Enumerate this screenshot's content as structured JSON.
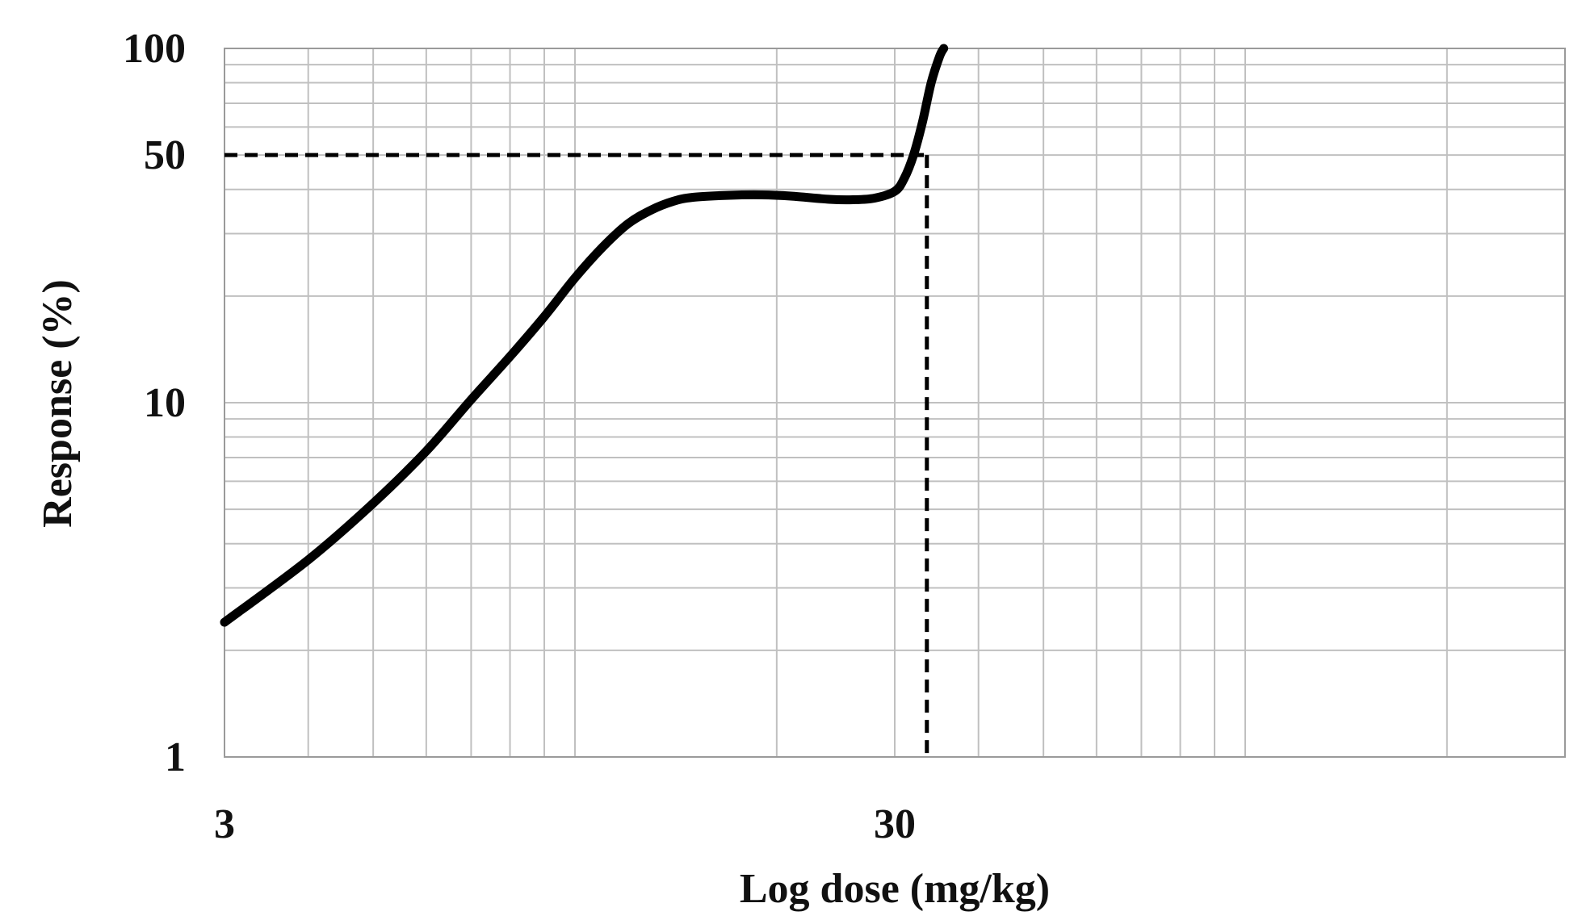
{
  "chart_data": {
    "type": "line",
    "title": "",
    "xlabel": "Log dose (mg/kg)",
    "ylabel": "Response (%)",
    "x_scale": "log",
    "y_scale": "log",
    "xlim": [
      3,
      300
    ],
    "ylim": [
      1,
      100
    ],
    "x_tick_labels": [
      {
        "value": 3,
        "label": "3"
      },
      {
        "value": 30,
        "label": "30"
      }
    ],
    "y_tick_labels": [
      {
        "value": 1,
        "label": "1"
      },
      {
        "value": 10,
        "label": "10"
      },
      {
        "value": 50,
        "label": "50"
      },
      {
        "value": 100,
        "label": "100"
      }
    ],
    "grid": true,
    "grid_color": "#c0c0c0",
    "line_color": "#000000",
    "series": [
      {
        "style": "solid",
        "x": [
          3,
          4,
          5,
          6,
          7,
          8,
          9,
          10,
          11,
          12,
          13,
          14,
          15,
          17,
          19,
          21,
          24,
          26,
          28,
          30,
          31,
          32,
          33,
          34,
          35,
          35.5
        ],
        "y": [
          2.4,
          3.6,
          5.2,
          7.3,
          10.2,
          13.5,
          17.5,
          22.5,
          27.5,
          32,
          35,
          37,
          38,
          38.5,
          38.6,
          38.3,
          37.5,
          37.4,
          37.8,
          39.5,
          43,
          50,
          62,
          80,
          95,
          100
        ]
      }
    ],
    "reference_lines": [
      {
        "style": "dashed",
        "x": [
          3,
          33.5
        ],
        "y": [
          50,
          50
        ]
      },
      {
        "style": "dashed",
        "x": [
          33.5,
          33.5
        ],
        "y": [
          50,
          1
        ]
      }
    ]
  }
}
